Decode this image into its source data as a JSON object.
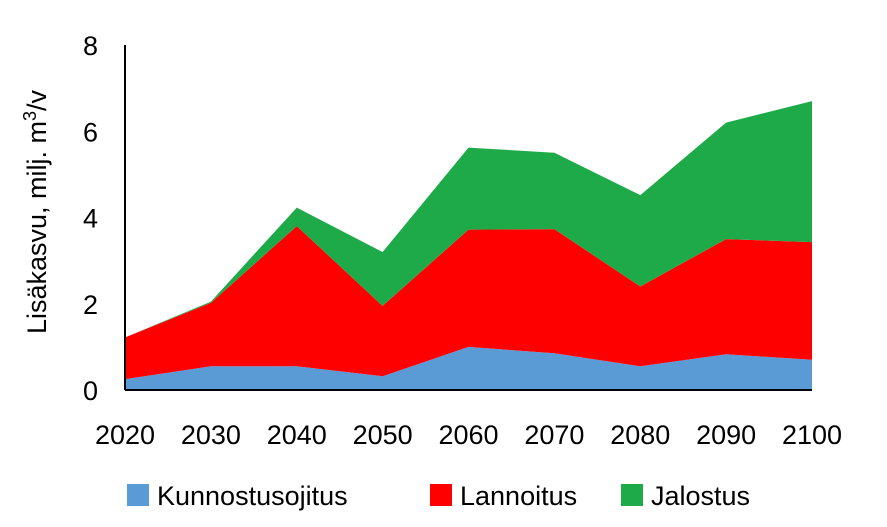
{
  "chart_data": {
    "type": "area",
    "stacked": true,
    "x": [
      "2020",
      "2030",
      "2040",
      "2050",
      "2060",
      "2070",
      "2080",
      "2090",
      "2100"
    ],
    "series": [
      {
        "name": "Kunnostusojitus",
        "color": "#5b9bd5",
        "values": [
          0.25,
          0.55,
          0.55,
          0.32,
          1.0,
          0.85,
          0.55,
          0.83,
          0.7
        ]
      },
      {
        "name": "Lannoitus",
        "color": "#ff0000",
        "values": [
          0.97,
          1.47,
          3.25,
          1.63,
          2.72,
          2.88,
          1.85,
          2.67,
          2.73
        ]
      },
      {
        "name": "Jalostus",
        "color": "#1faa4a",
        "values": [
          0.0,
          0.03,
          0.43,
          1.25,
          1.9,
          1.77,
          2.12,
          2.7,
          3.27
        ]
      }
    ],
    "ylabel_main": "Lisäkasvu, milj. m",
    "ylabel_sup": "3",
    "ylabel_tail": "/v",
    "ylim": [
      0,
      8
    ],
    "yticks": [
      "0",
      "2",
      "4",
      "6",
      "8"
    ],
    "grid": false,
    "legend_position": "bottom"
  }
}
